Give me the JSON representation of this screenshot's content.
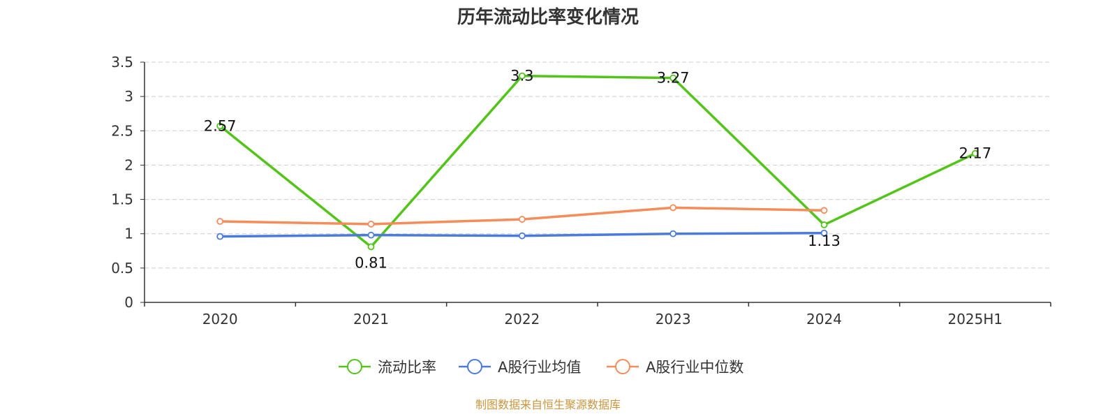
{
  "chart_data": {
    "type": "line",
    "title": "历年流动比率变化情况",
    "categories": [
      "2020",
      "2021",
      "2022",
      "2023",
      "2024",
      "2025H1"
    ],
    "y_ticks": [
      "0",
      "0.5",
      "1",
      "1.5",
      "2",
      "2.5",
      "3",
      "3.5"
    ],
    "ylim": [
      0,
      3.5
    ],
    "grid": true,
    "series": [
      {
        "name": "流动比率",
        "color": "#52c41a",
        "values": [
          2.57,
          0.81,
          3.3,
          3.27,
          1.13,
          2.17
        ],
        "labels": [
          "2.57",
          "0.81",
          "3.3",
          "3.27",
          "1.13",
          "2.17"
        ]
      },
      {
        "name": "A股行业均值",
        "color": "#4a7bdc",
        "values": [
          0.96,
          0.98,
          0.97,
          1.0,
          1.01,
          null
        ]
      },
      {
        "name": "A股行业中位数",
        "color": "#f68c5a",
        "values": [
          1.18,
          1.14,
          1.21,
          1.38,
          1.34,
          null
        ]
      }
    ],
    "legend_position": "bottom-center",
    "source": "制图数据来自恒生聚源数据库"
  },
  "colors": {
    "source_text": "#c8963e",
    "axis": "#333333",
    "grid": "#cccccc"
  }
}
